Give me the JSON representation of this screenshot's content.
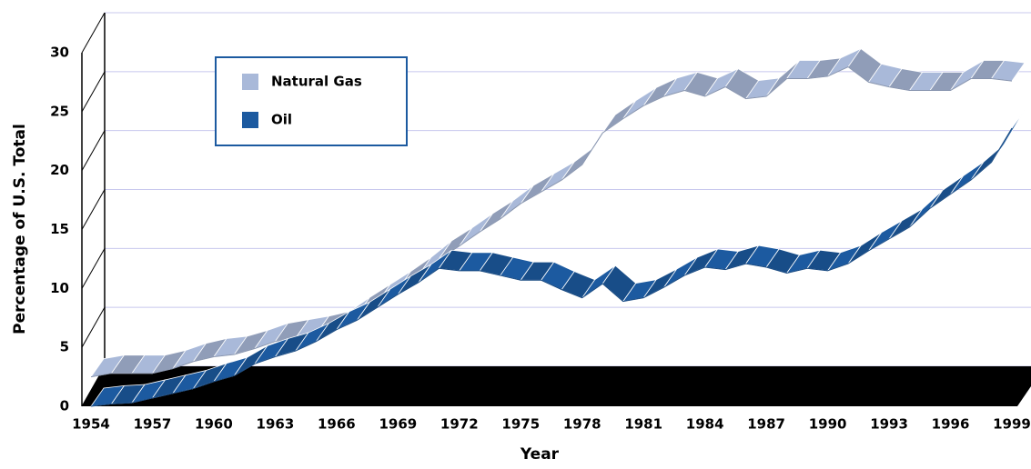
{
  "chart_data": {
    "type": "ribbon",
    "y_label": "Percentage of U.S. Total",
    "x_label": "Year",
    "legend": "upper left",
    "categories": [
      "1954",
      null,
      null,
      "1957",
      null,
      null,
      "1960",
      null,
      null,
      "1963",
      null,
      null,
      "1966",
      null,
      null,
      "1969",
      null,
      null,
      "1972",
      null,
      null,
      "1975",
      null,
      null,
      "1978",
      null,
      null,
      "1981",
      null,
      null,
      "1984",
      null,
      null,
      "1987",
      null,
      null,
      "1990",
      null,
      null,
      "1993",
      null,
      null,
      "1996",
      null,
      null,
      "1999"
    ],
    "series": [
      {
        "name": "Natural Gas",
        "color": "#a9b9d9",
        "values": [
          2.5,
          2.8,
          2.8,
          2.8,
          3.2,
          3.8,
          4.2,
          4.4,
          4.9,
          5.5,
          5.8,
          6.1,
          6.5,
          7.7,
          8.8,
          9.9,
          11.1,
          12.5,
          13.6,
          14.8,
          15.9,
          17.2,
          18.2,
          19.2,
          20.5,
          23.2,
          24.4,
          25.5,
          26.3,
          26.8,
          26.3,
          27.1,
          26.1,
          26.3,
          27.8,
          27.8,
          28.0,
          28.8,
          27.5,
          27.1,
          26.8,
          26.8,
          26.8,
          27.8,
          27.8,
          27.6
        ]
      },
      {
        "name": "Oil",
        "color": "#1c5aa0",
        "values": [
          0,
          0.2,
          0.3,
          0.7,
          1.1,
          1.5,
          2.1,
          2.6,
          3.6,
          4.2,
          4.7,
          5.5,
          6.5,
          7.3,
          8.4,
          9.5,
          10.5,
          11.7,
          11.5,
          11.5,
          11.1,
          10.7,
          10.7,
          9.9,
          9.2,
          10.4,
          8.9,
          9.2,
          10.1,
          11.1,
          11.8,
          11.6,
          12.1,
          11.8,
          11.3,
          11.7,
          11.5,
          12.1,
          13.2,
          14.2,
          15.2,
          16.8,
          18.0,
          19.2,
          20.7,
          23.6
        ]
      }
    ],
    "ylim": [
      0,
      30
    ],
    "yticks": [
      0,
      5,
      10,
      15,
      20,
      25,
      30
    ],
    "grid": true
  }
}
